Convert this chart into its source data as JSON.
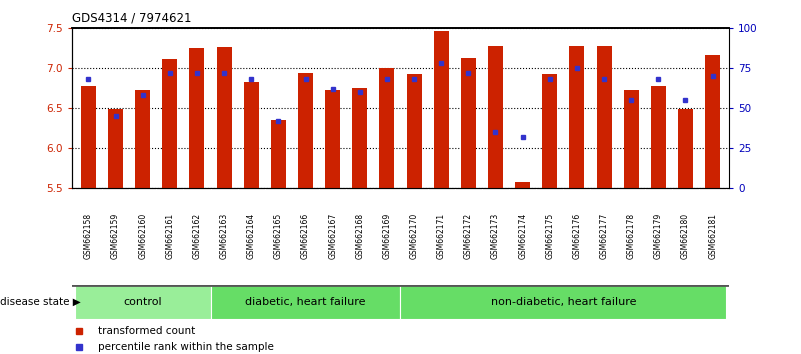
{
  "title": "GDS4314 / 7974621",
  "samples": [
    "GSM662158",
    "GSM662159",
    "GSM662160",
    "GSM662161",
    "GSM662162",
    "GSM662163",
    "GSM662164",
    "GSM662165",
    "GSM662166",
    "GSM662167",
    "GSM662168",
    "GSM662169",
    "GSM662170",
    "GSM662171",
    "GSM662172",
    "GSM662173",
    "GSM662174",
    "GSM662175",
    "GSM662176",
    "GSM662177",
    "GSM662178",
    "GSM662179",
    "GSM662180",
    "GSM662181"
  ],
  "red_values": [
    6.77,
    6.49,
    6.73,
    7.11,
    7.25,
    7.26,
    6.83,
    6.35,
    6.94,
    6.73,
    6.75,
    7.0,
    6.93,
    7.47,
    7.13,
    7.28,
    5.57,
    6.93,
    7.28,
    7.28,
    6.72,
    6.78,
    6.49,
    7.17
  ],
  "blue_values": [
    68,
    45,
    58,
    72,
    72,
    72,
    68,
    42,
    68,
    62,
    60,
    68,
    68,
    78,
    72,
    35,
    32,
    68,
    75,
    68,
    55,
    68,
    55,
    70
  ],
  "ylim_left": [
    5.5,
    7.5
  ],
  "ylim_right": [
    0,
    100
  ],
  "yticks_left": [
    5.5,
    6.0,
    6.5,
    7.0,
    7.5
  ],
  "yticks_right": [
    0,
    25,
    50,
    75,
    100
  ],
  "ytick_labels_right": [
    "0",
    "25",
    "50",
    "75",
    "100"
  ],
  "groups": [
    {
      "label": "control",
      "start": 0,
      "end": 4,
      "color": "#99EE99"
    },
    {
      "label": "diabetic, heart failure",
      "start": 5,
      "end": 11,
      "color": "#66DD66"
    },
    {
      "label": "non-diabetic, heart failure",
      "start": 12,
      "end": 23,
      "color": "#66DD66"
    }
  ],
  "bar_color": "#CC2200",
  "blue_color": "#3333CC",
  "bg_color": "#ffffff",
  "tick_bg_color": "#CCCCCC",
  "axis_color_left": "#CC2200",
  "axis_color_right": "#0000BB",
  "legend_items": [
    {
      "label": "transformed count",
      "color": "#CC2200"
    },
    {
      "label": "percentile rank within the sample",
      "color": "#3333CC"
    }
  ],
  "disease_state_label": "disease state",
  "separator_color": "#555555"
}
